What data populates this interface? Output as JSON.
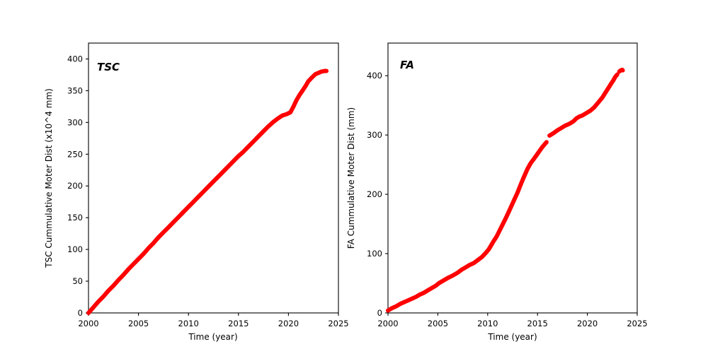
{
  "figure": {
    "background_color": "#ffffff",
    "frame_color": "#000000",
    "accent_color": "#ff0000"
  },
  "chart_data": [
    {
      "id": "tsc",
      "type": "scatter",
      "label": "TSC",
      "xlabel": "Time (year)",
      "ylabel": "TSC Cummulative Moter Dist (x10^4 mm)",
      "xlim": [
        2000,
        2025
      ],
      "ylim": [
        0,
        425
      ],
      "xticks": [
        2000,
        2005,
        2010,
        2015,
        2020,
        2025
      ],
      "yticks": [
        0,
        50,
        100,
        150,
        200,
        250,
        300,
        350,
        400
      ],
      "grid": false,
      "legend": "none",
      "color": "#ff0000",
      "marker": "thick-dot-line",
      "segments": [
        [
          [
            2000.0,
            0
          ],
          [
            2000.5,
            9
          ],
          [
            2001.0,
            18
          ],
          [
            2001.5,
            26
          ],
          [
            2002.0,
            35
          ],
          [
            2002.5,
            43
          ],
          [
            2003.0,
            52
          ],
          [
            2003.5,
            60
          ],
          [
            2004.0,
            69
          ],
          [
            2004.5,
            77
          ],
          [
            2005.0,
            85
          ],
          [
            2005.5,
            93
          ],
          [
            2006.0,
            102
          ],
          [
            2006.5,
            110
          ],
          [
            2007.0,
            119
          ],
          [
            2007.5,
            127
          ],
          [
            2008.0,
            135
          ],
          [
            2008.5,
            143
          ],
          [
            2009.0,
            151
          ],
          [
            2009.5,
            159
          ],
          [
            2010.0,
            167
          ],
          [
            2010.5,
            175
          ],
          [
            2011.0,
            183
          ],
          [
            2011.5,
            191
          ],
          [
            2012.0,
            199
          ],
          [
            2012.5,
            207
          ],
          [
            2013.0,
            215
          ],
          [
            2013.5,
            223
          ],
          [
            2014.0,
            231
          ],
          [
            2014.5,
            239
          ],
          [
            2015.0,
            247
          ],
          [
            2015.5,
            254
          ],
          [
            2016.0,
            262
          ],
          [
            2016.5,
            270
          ],
          [
            2017.0,
            278
          ],
          [
            2017.5,
            286
          ],
          [
            2018.0,
            294
          ],
          [
            2018.5,
            301
          ],
          [
            2019.0,
            307
          ],
          [
            2019.4,
            311
          ],
          [
            2019.8,
            313
          ],
          [
            2020.2,
            316
          ],
          [
            2020.5,
            325
          ],
          [
            2020.8,
            335
          ],
          [
            2021.1,
            343
          ],
          [
            2021.4,
            350
          ],
          [
            2021.7,
            357
          ],
          [
            2022.0,
            365
          ],
          [
            2022.3,
            370
          ],
          [
            2022.7,
            376
          ],
          [
            2023.0,
            378
          ],
          [
            2023.3,
            380
          ],
          [
            2023.6,
            381
          ],
          [
            2023.8,
            381
          ]
        ]
      ]
    },
    {
      "id": "fa",
      "type": "scatter",
      "label": "FA",
      "xlabel": "Time (year)",
      "ylabel": "FA Cummulative Moter Dist (mm)",
      "xlim": [
        2000,
        2025
      ],
      "ylim": [
        0,
        455
      ],
      "xticks": [
        2000,
        2005,
        2010,
        2015,
        2020,
        2025
      ],
      "yticks": [
        0,
        100,
        200,
        300,
        400
      ],
      "grid": false,
      "legend": "none",
      "color": "#ff0000",
      "marker": "thick-dot-line",
      "segments": [
        [
          [
            2000.0,
            4
          ],
          [
            2000.4,
            8
          ],
          [
            2000.8,
            11
          ],
          [
            2001.2,
            15
          ],
          [
            2001.6,
            18
          ],
          [
            2002.0,
            21
          ],
          [
            2002.4,
            24
          ],
          [
            2002.8,
            27
          ],
          [
            2003.2,
            31
          ],
          [
            2003.6,
            34
          ],
          [
            2004.0,
            38
          ],
          [
            2004.4,
            42
          ],
          [
            2004.8,
            46
          ],
          [
            2005.1,
            50
          ],
          [
            2005.4,
            53
          ],
          [
            2005.7,
            56
          ],
          [
            2006.0,
            59
          ],
          [
            2006.5,
            63
          ],
          [
            2007.0,
            68
          ],
          [
            2007.4,
            73
          ],
          [
            2007.8,
            77
          ],
          [
            2008.2,
            81
          ],
          [
            2008.6,
            84
          ],
          [
            2009.0,
            89
          ],
          [
            2009.4,
            94
          ],
          [
            2009.8,
            101
          ],
          [
            2010.1,
            107
          ],
          [
            2010.35,
            114
          ],
          [
            2010.6,
            121
          ],
          [
            2010.9,
            129
          ],
          [
            2011.2,
            139
          ],
          [
            2011.5,
            149
          ],
          [
            2011.8,
            159
          ],
          [
            2012.1,
            170
          ],
          [
            2012.4,
            181
          ],
          [
            2012.7,
            192
          ],
          [
            2013.0,
            203
          ],
          [
            2013.3,
            216
          ],
          [
            2013.6,
            228
          ],
          [
            2014.0,
            243
          ],
          [
            2014.3,
            252
          ],
          [
            2014.6,
            259
          ],
          [
            2014.9,
            266
          ],
          [
            2015.2,
            273
          ],
          [
            2015.5,
            280
          ],
          [
            2015.9,
            288
          ]
        ],
        [
          [
            2016.2,
            299
          ],
          [
            2016.6,
            303
          ],
          [
            2017.0,
            308
          ],
          [
            2017.4,
            312
          ],
          [
            2017.8,
            316
          ],
          [
            2018.2,
            319
          ],
          [
            2018.6,
            323
          ],
          [
            2018.9,
            328
          ],
          [
            2019.2,
            331
          ],
          [
            2019.5,
            333
          ],
          [
            2019.9,
            337
          ],
          [
            2020.3,
            341
          ],
          [
            2020.7,
            347
          ],
          [
            2021.1,
            355
          ],
          [
            2021.5,
            363
          ],
          [
            2021.8,
            371
          ],
          [
            2022.1,
            379
          ],
          [
            2022.4,
            387
          ],
          [
            2022.6,
            392
          ],
          [
            2022.8,
            398
          ],
          [
            2023.0,
            402
          ]
        ],
        [
          [
            2023.2,
            407
          ],
          [
            2023.35,
            409
          ],
          [
            2023.5,
            410
          ],
          [
            2023.55,
            409
          ]
        ]
      ]
    }
  ]
}
